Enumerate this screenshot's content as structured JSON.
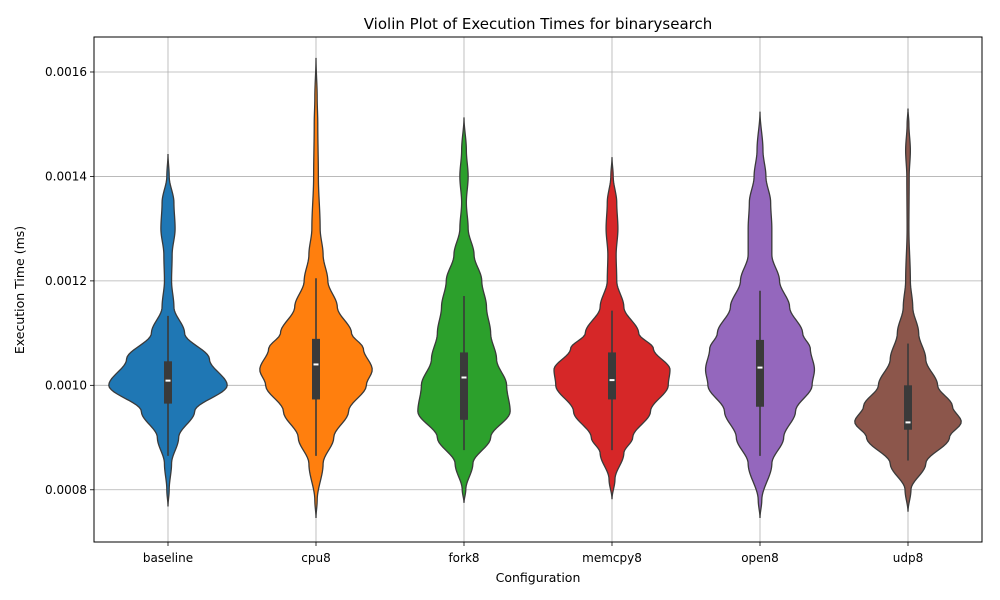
{
  "chart_data": {
    "type": "violin",
    "title": "Violin Plot of Execution Times for binarysearch",
    "xlabel": "Configuration",
    "ylabel": "Execution Time (ms)",
    "ylim": [
      0.0007,
      0.001667
    ],
    "yticks": [
      "0.0008",
      "0.0010",
      "0.0012",
      "0.0014",
      "0.0016"
    ],
    "grid": true,
    "categories": [
      "baseline",
      "cpu8",
      "fork8",
      "memcpy8",
      "open8",
      "udp8"
    ],
    "series": [
      {
        "category": "baseline",
        "color": "#1f77b4",
        "y_min": 0.000768,
        "y_max": 0.001443,
        "q1": 0.000965,
        "median": 0.001009,
        "q3": 0.001046,
        "whisker_low": 0.000865,
        "whisker_high": 0.001133,
        "density": [
          [
            0.000768,
            0
          ],
          [
            0.0008,
            0.02
          ],
          [
            0.00085,
            0.06
          ],
          [
            0.0009,
            0.18
          ],
          [
            0.00095,
            0.45
          ],
          [
            0.001,
            1.0
          ],
          [
            0.00105,
            0.7
          ],
          [
            0.0011,
            0.28
          ],
          [
            0.00115,
            0.1
          ],
          [
            0.0012,
            0.06
          ],
          [
            0.00125,
            0.07
          ],
          [
            0.0013,
            0.12
          ],
          [
            0.00135,
            0.1
          ],
          [
            0.0014,
            0.02
          ],
          [
            0.001443,
            0
          ]
        ]
      },
      {
        "category": "cpu8",
        "color": "#ff7f0e",
        "y_min": 0.000746,
        "y_max": 0.001627,
        "q1": 0.000973,
        "median": 0.00104,
        "q3": 0.001089,
        "whisker_low": 0.000865,
        "whisker_high": 0.001205,
        "density": [
          [
            0.000746,
            0
          ],
          [
            0.00078,
            0.02
          ],
          [
            0.00085,
            0.12
          ],
          [
            0.0009,
            0.3
          ],
          [
            0.00095,
            0.55
          ],
          [
            0.001,
            0.85
          ],
          [
            0.00103,
            0.95
          ],
          [
            0.00107,
            0.8
          ],
          [
            0.0011,
            0.6
          ],
          [
            0.00115,
            0.36
          ],
          [
            0.0012,
            0.2
          ],
          [
            0.00125,
            0.12
          ],
          [
            0.0013,
            0.07
          ],
          [
            0.0014,
            0.04
          ],
          [
            0.0015,
            0.03
          ],
          [
            0.00155,
            0.02
          ],
          [
            0.001627,
            0
          ]
        ]
      },
      {
        "category": "fork8",
        "color": "#2ca02c",
        "y_min": 0.000775,
        "y_max": 0.001513,
        "q1": 0.000934,
        "median": 0.001015,
        "q3": 0.001063,
        "whisker_low": 0.000876,
        "whisker_high": 0.001171,
        "density": [
          [
            0.000775,
            0
          ],
          [
            0.0008,
            0.03
          ],
          [
            0.00085,
            0.15
          ],
          [
            0.0009,
            0.45
          ],
          [
            0.00095,
            0.78
          ],
          [
            0.001,
            0.72
          ],
          [
            0.00105,
            0.55
          ],
          [
            0.0011,
            0.45
          ],
          [
            0.00115,
            0.38
          ],
          [
            0.0012,
            0.3
          ],
          [
            0.00125,
            0.17
          ],
          [
            0.0013,
            0.07
          ],
          [
            0.00135,
            0.04
          ],
          [
            0.0014,
            0.07
          ],
          [
            0.00145,
            0.04
          ],
          [
            0.001513,
            0
          ]
        ]
      },
      {
        "category": "memcpy8",
        "color": "#d62728",
        "y_min": 0.000782,
        "y_max": 0.001437,
        "q1": 0.000973,
        "median": 0.00101,
        "q3": 0.001063,
        "whisker_low": 0.000876,
        "whisker_high": 0.001143,
        "density": [
          [
            0.000782,
            0
          ],
          [
            0.00082,
            0.05
          ],
          [
            0.00087,
            0.2
          ],
          [
            0.0009,
            0.35
          ],
          [
            0.00095,
            0.65
          ],
          [
            0.001,
            0.95
          ],
          [
            0.00103,
            0.98
          ],
          [
            0.00107,
            0.7
          ],
          [
            0.0011,
            0.45
          ],
          [
            0.00115,
            0.2
          ],
          [
            0.0012,
            0.08
          ],
          [
            0.00125,
            0.07
          ],
          [
            0.0013,
            0.1
          ],
          [
            0.00135,
            0.08
          ],
          [
            0.0014,
            0.02
          ],
          [
            0.001437,
            0
          ]
        ]
      },
      {
        "category": "open8",
        "color": "#9467bd",
        "y_min": 0.000746,
        "y_max": 0.001524,
        "q1": 0.000959,
        "median": 0.001034,
        "q3": 0.001087,
        "whisker_low": 0.000865,
        "whisker_high": 0.001181,
        "density": [
          [
            0.000746,
            0
          ],
          [
            0.00078,
            0.03
          ],
          [
            0.00085,
            0.2
          ],
          [
            0.0009,
            0.4
          ],
          [
            0.00095,
            0.6
          ],
          [
            0.001,
            0.88
          ],
          [
            0.00103,
            0.92
          ],
          [
            0.00107,
            0.85
          ],
          [
            0.0011,
            0.72
          ],
          [
            0.00115,
            0.5
          ],
          [
            0.0012,
            0.33
          ],
          [
            0.00125,
            0.2
          ],
          [
            0.0013,
            0.2
          ],
          [
            0.00135,
            0.18
          ],
          [
            0.0014,
            0.1
          ],
          [
            0.00145,
            0.05
          ],
          [
            0.001524,
            0
          ]
        ]
      },
      {
        "category": "udp8",
        "color": "#8c564b",
        "y_min": 0.000758,
        "y_max": 0.00153,
        "q1": 0.000915,
        "median": 0.000929,
        "q3": 0.001,
        "whisker_low": 0.000856,
        "whisker_high": 0.00108,
        "density": [
          [
            0.000758,
            0
          ],
          [
            0.0008,
            0.05
          ],
          [
            0.00085,
            0.3
          ],
          [
            0.0009,
            0.7
          ],
          [
            0.00093,
            0.9
          ],
          [
            0.00096,
            0.75
          ],
          [
            0.001,
            0.5
          ],
          [
            0.00105,
            0.3
          ],
          [
            0.0011,
            0.18
          ],
          [
            0.00115,
            0.08
          ],
          [
            0.0012,
            0.04
          ],
          [
            0.0013,
            0.015
          ],
          [
            0.0014,
            0.02
          ],
          [
            0.00145,
            0.04
          ],
          [
            0.0015,
            0.015
          ],
          [
            0.00153,
            0
          ]
        ]
      }
    ]
  }
}
